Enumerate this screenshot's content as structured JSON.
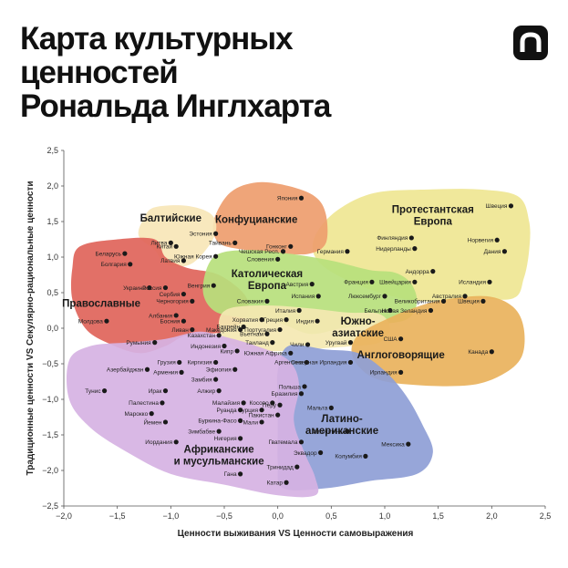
{
  "title_lines": [
    "Карта культурных",
    "ценностей",
    "Рональда Инглхарта"
  ],
  "logo": {
    "icon": "arch-logo-icon",
    "color": "#111111"
  },
  "chart_data": {
    "type": "scatter",
    "xlabel": "Ценности выживания VS Ценности самовыражения",
    "ylabel": "Традиционные ценности VS Секулярно-рациональные ценности",
    "xlim": [
      -2.0,
      2.5
    ],
    "ylim": [
      -2.5,
      2.5
    ],
    "xticks": [
      "−2,0",
      "−1,5",
      "−1,0",
      "−0,5",
      "0,0",
      "0,5",
      "1,0",
      "1,5",
      "2,0",
      "2,5"
    ],
    "yticks": [
      "2,5",
      "2,0",
      "1,5",
      "1,0",
      "0,5",
      "0,0",
      "−0,5",
      "−1,0",
      "−1,5",
      "−2,0",
      "−2,5"
    ],
    "regions": [
      {
        "name": "Протестантская Европа",
        "lines": [
          "Протестантская",
          "Европа"
        ],
        "color": "#efe692",
        "label_at": [
          1.45,
          1.62
        ],
        "outline": [
          [
            0.55,
            1.65
          ],
          [
            0.9,
            1.9
          ],
          [
            1.4,
            1.95
          ],
          [
            1.9,
            1.95
          ],
          [
            2.25,
            1.85
          ],
          [
            2.35,
            1.5
          ],
          [
            2.35,
            1.1
          ],
          [
            2.3,
            0.7
          ],
          [
            2.2,
            0.42
          ],
          [
            1.8,
            0.42
          ],
          [
            1.35,
            0.38
          ],
          [
            0.95,
            0.5
          ],
          [
            0.55,
            0.75
          ],
          [
            0.35,
            1.0
          ],
          [
            0.35,
            1.3
          ]
        ]
      },
      {
        "name": "Конфуцианские",
        "lines": [
          "Конфуцианские"
        ],
        "color": "#ee9d6e",
        "label_at": [
          -0.2,
          1.48
        ],
        "outline": [
          [
            -0.45,
            1.9
          ],
          [
            -0.2,
            2.05
          ],
          [
            0.1,
            2.0
          ],
          [
            0.35,
            1.85
          ],
          [
            0.45,
            1.6
          ],
          [
            0.45,
            1.2
          ],
          [
            0.3,
            1.05
          ],
          [
            0.05,
            1.05
          ],
          [
            -0.3,
            1.1
          ],
          [
            -0.55,
            1.2
          ],
          [
            -0.6,
            1.5
          ]
        ]
      },
      {
        "name": "Балтийские",
        "lines": [
          "Балтийские"
        ],
        "color": "#f7e6b7",
        "label_at": [
          -1.0,
          1.5
        ],
        "outline": [
          [
            -1.25,
            1.55
          ],
          [
            -1.15,
            1.7
          ],
          [
            -0.85,
            1.72
          ],
          [
            -0.62,
            1.6
          ],
          [
            -0.58,
            1.35
          ],
          [
            -0.7,
            1.05
          ],
          [
            -0.85,
            0.88
          ],
          [
            -1.05,
            0.9
          ],
          [
            -1.15,
            1.1
          ],
          [
            -1.3,
            1.3
          ]
        ]
      },
      {
        "name": "Православные",
        "lines": [
          "Православные"
        ],
        "color": "#e0645a",
        "label_at": [
          -1.65,
          0.3
        ],
        "outline": [
          [
            -1.85,
            1.15
          ],
          [
            -1.5,
            1.25
          ],
          [
            -1.15,
            1.25
          ],
          [
            -1.05,
            1.0
          ],
          [
            -0.85,
            0.85
          ],
          [
            -0.55,
            0.75
          ],
          [
            -0.3,
            0.45
          ],
          [
            -0.3,
            0.15
          ],
          [
            -0.5,
            -0.05
          ],
          [
            -0.85,
            -0.1
          ],
          [
            -1.05,
            -0.25
          ],
          [
            -1.3,
            -0.35
          ],
          [
            -1.6,
            -0.2
          ],
          [
            -1.8,
            0.0
          ],
          [
            -1.92,
            0.4
          ],
          [
            -1.92,
            0.85
          ]
        ]
      },
      {
        "name": "Католическая Европа",
        "lines": [
          "Католическая",
          "Европа"
        ],
        "color": "#b7e07c",
        "label_at": [
          -0.1,
          0.72
        ],
        "outline": [
          [
            -0.6,
            1.0
          ],
          [
            -0.3,
            1.1
          ],
          [
            0.1,
            1.05
          ],
          [
            0.5,
            0.95
          ],
          [
            0.85,
            0.82
          ],
          [
            1.1,
            0.78
          ],
          [
            1.25,
            0.62
          ],
          [
            1.3,
            0.35
          ],
          [
            1.2,
            0.12
          ],
          [
            0.9,
            0.05
          ],
          [
            0.6,
            0.0
          ],
          [
            0.3,
            -0.08
          ],
          [
            0.0,
            0.08
          ],
          [
            -0.35,
            0.15
          ],
          [
            -0.6,
            0.25
          ],
          [
            -0.7,
            0.55
          ]
        ]
      },
      {
        "name": "Южно-азиатские",
        "lines": [
          "Южно-",
          "азиатские"
        ],
        "color": "#f4e8b2",
        "label_at": [
          0.75,
          0.05
        ],
        "outline": [
          [
            -0.45,
            0.28
          ],
          [
            -0.1,
            0.32
          ],
          [
            0.3,
            0.28
          ],
          [
            0.65,
            0.22
          ],
          [
            0.95,
            0.2
          ],
          [
            1.05,
            0.0
          ],
          [
            0.95,
            -0.2
          ],
          [
            0.7,
            -0.25
          ],
          [
            0.45,
            -0.28
          ],
          [
            0.05,
            -0.32
          ],
          [
            -0.3,
            -0.3
          ],
          [
            -0.5,
            -0.15
          ],
          [
            -0.55,
            0.1
          ]
        ]
      },
      {
        "name": "Англоговорящие",
        "lines": [
          "Англоговорящие"
        ],
        "color": "#e9b25c",
        "label_at": [
          1.15,
          -0.42
        ],
        "outline": [
          [
            0.75,
            -0.1
          ],
          [
            1.05,
            0.15
          ],
          [
            1.3,
            0.3
          ],
          [
            1.55,
            0.4
          ],
          [
            1.95,
            0.45
          ],
          [
            2.2,
            0.3
          ],
          [
            2.3,
            0.0
          ],
          [
            2.28,
            -0.4
          ],
          [
            2.1,
            -0.65
          ],
          [
            1.8,
            -0.8
          ],
          [
            1.3,
            -0.8
          ],
          [
            0.9,
            -0.7
          ],
          [
            0.7,
            -0.4
          ]
        ]
      },
      {
        "name": "Латиноамериканские",
        "lines": [
          "Латино-",
          "американские"
        ],
        "color": "#8e9ed6",
        "label_at": [
          0.6,
          -1.32
        ],
        "outline": [
          [
            0.1,
            -0.25
          ],
          [
            0.45,
            -0.3
          ],
          [
            0.75,
            -0.35
          ],
          [
            1.0,
            -0.6
          ],
          [
            1.2,
            -0.95
          ],
          [
            1.35,
            -1.35
          ],
          [
            1.45,
            -1.75
          ],
          [
            1.3,
            -2.05
          ],
          [
            0.85,
            -2.15
          ],
          [
            0.45,
            -2.25
          ],
          [
            0.05,
            -2.25
          ],
          [
            0.0,
            -1.9
          ],
          [
            0.0,
            -1.45
          ],
          [
            0.0,
            -1.0
          ],
          [
            0.0,
            -0.6
          ]
        ]
      },
      {
        "name": "Африканские и мусульманские",
        "lines": [
          "Африканские",
          "и мусульманские"
        ],
        "color": "#d6b2e3",
        "label_at": [
          -0.55,
          -1.75
        ],
        "outline": [
          [
            -1.95,
            -0.45
          ],
          [
            -1.75,
            -0.25
          ],
          [
            -1.4,
            -0.2
          ],
          [
            -1.05,
            -0.15
          ],
          [
            -0.75,
            -0.05
          ],
          [
            -0.55,
            -0.1
          ],
          [
            -0.2,
            -0.25
          ],
          [
            0.1,
            -0.45
          ],
          [
            0.2,
            -0.8
          ],
          [
            0.15,
            -1.3
          ],
          [
            0.25,
            -1.75
          ],
          [
            0.35,
            -2.1
          ],
          [
            0.35,
            -2.35
          ],
          [
            0.0,
            -2.35
          ],
          [
            -0.5,
            -2.2
          ],
          [
            -1.0,
            -2.05
          ],
          [
            -1.4,
            -1.75
          ],
          [
            -1.75,
            -1.4
          ],
          [
            -1.95,
            -1.0
          ]
        ]
      }
    ],
    "points": [
      {
        "name": "Япония",
        "x": 0.22,
        "y": 1.83
      },
      {
        "name": "Швеция",
        "x": 2.18,
        "y": 1.72
      },
      {
        "name": "Эстония",
        "x": -0.58,
        "y": 1.33
      },
      {
        "name": "Финляндия",
        "x": 1.25,
        "y": 1.27
      },
      {
        "name": "Норвегия",
        "x": 2.05,
        "y": 1.24
      },
      {
        "name": "Литва",
        "x": -1.0,
        "y": 1.2
      },
      {
        "name": "Китай",
        "x": -0.95,
        "y": 1.15
      },
      {
        "name": "Тайвань",
        "x": -0.4,
        "y": 1.2
      },
      {
        "name": "Гонконг",
        "x": 0.12,
        "y": 1.15
      },
      {
        "name": "Нидерланды",
        "x": 1.28,
        "y": 1.12
      },
      {
        "name": "Дания",
        "x": 2.12,
        "y": 1.08
      },
      {
        "name": "Беларусь",
        "x": -1.43,
        "y": 1.05
      },
      {
        "name": "Чешская Респ.",
        "x": 0.05,
        "y": 1.08
      },
      {
        "name": "Южная Корея",
        "x": -0.58,
        "y": 1.01
      },
      {
        "name": "Германия",
        "x": 0.65,
        "y": 1.08
      },
      {
        "name": "Словения",
        "x": 0.0,
        "y": 0.97
      },
      {
        "name": "Болгария",
        "x": -1.38,
        "y": 0.9
      },
      {
        "name": "Латвия",
        "x": -0.88,
        "y": 0.95
      },
      {
        "name": "Андорра",
        "x": 1.45,
        "y": 0.8
      },
      {
        "name": "Франция",
        "x": 0.88,
        "y": 0.65
      },
      {
        "name": "Швейцария",
        "x": 1.28,
        "y": 0.65
      },
      {
        "name": "Исландия",
        "x": 1.98,
        "y": 0.65
      },
      {
        "name": "Венгрия",
        "x": -0.6,
        "y": 0.6
      },
      {
        "name": "Австрия",
        "x": 0.32,
        "y": 0.62
      },
      {
        "name": "Украина",
        "x": -1.2,
        "y": 0.57
      },
      {
        "name": "Россия",
        "x": -1.05,
        "y": 0.57
      },
      {
        "name": "Сербия",
        "x": -0.88,
        "y": 0.48
      },
      {
        "name": "Испания",
        "x": 0.38,
        "y": 0.45
      },
      {
        "name": "Люксембург",
        "x": 1.0,
        "y": 0.45
      },
      {
        "name": "Австралия",
        "x": 1.75,
        "y": 0.45
      },
      {
        "name": "Словакия",
        "x": -0.1,
        "y": 0.38
      },
      {
        "name": "Черногория",
        "x": -0.8,
        "y": 0.38
      },
      {
        "name": "Великобритания",
        "x": 1.55,
        "y": 0.38
      },
      {
        "name": "Швеция",
        "x": 1.92,
        "y": 0.38
      },
      {
        "name": "Бельгия",
        "x": 1.05,
        "y": 0.25
      },
      {
        "name": "Албания",
        "x": -0.95,
        "y": 0.18
      },
      {
        "name": "Италия",
        "x": 0.2,
        "y": 0.25
      },
      {
        "name": "Новая Зеландия",
        "x": 1.43,
        "y": 0.25
      },
      {
        "name": "Хорватия",
        "x": -0.15,
        "y": 0.12
      },
      {
        "name": "Греция",
        "x": 0.08,
        "y": 0.12
      },
      {
        "name": "Индия",
        "x": 0.37,
        "y": 0.1
      },
      {
        "name": "Босния",
        "x": -0.88,
        "y": 0.1
      },
      {
        "name": "Молдова",
        "x": -1.6,
        "y": 0.1
      },
      {
        "name": "Бахрейн",
        "x": -0.32,
        "y": 0.02
      },
      {
        "name": "Ливан",
        "x": -0.8,
        "y": -0.02
      },
      {
        "name": "Македония",
        "x": -0.35,
        "y": -0.02
      },
      {
        "name": "Португалия",
        "x": 0.02,
        "y": -0.02
      },
      {
        "name": "Вьетнам",
        "x": -0.1,
        "y": -0.08
      },
      {
        "name": "Казахстан",
        "x": -0.55,
        "y": -0.1
      },
      {
        "name": "Таиланд",
        "x": -0.05,
        "y": -0.2
      },
      {
        "name": "Уругвай",
        "x": 0.68,
        "y": -0.2
      },
      {
        "name": "США",
        "x": 1.15,
        "y": -0.15
      },
      {
        "name": "Румыния",
        "x": -1.15,
        "y": -0.2
      },
      {
        "name": "Чили",
        "x": 0.28,
        "y": -0.23
      },
      {
        "name": "Индонезия",
        "x": -0.5,
        "y": -0.25
      },
      {
        "name": "Кипр",
        "x": -0.38,
        "y": -0.32
      },
      {
        "name": "Южная Африка",
        "x": 0.12,
        "y": -0.35
      },
      {
        "name": "Канада",
        "x": 2.0,
        "y": -0.33
      },
      {
        "name": "Грузия",
        "x": -0.92,
        "y": -0.48
      },
      {
        "name": "Киргизия",
        "x": -0.58,
        "y": -0.48
      },
      {
        "name": "Аргентина",
        "x": 0.27,
        "y": -0.48
      },
      {
        "name": "Северная Ирландия",
        "x": 0.68,
        "y": -0.48
      },
      {
        "name": "Азербайджан",
        "x": -1.22,
        "y": -0.58
      },
      {
        "name": "Армения",
        "x": -0.9,
        "y": -0.62
      },
      {
        "name": "Эфиопия",
        "x": -0.4,
        "y": -0.58
      },
      {
        "name": "Ирландия",
        "x": 1.15,
        "y": -0.62
      },
      {
        "name": "Тунис",
        "x": -1.62,
        "y": -0.88
      },
      {
        "name": "Ирак",
        "x": -1.05,
        "y": -0.88
      },
      {
        "name": "Замбия",
        "x": -0.58,
        "y": -0.72
      },
      {
        "name": "Алжир",
        "x": -0.55,
        "y": -0.88
      },
      {
        "name": "Польша",
        "x": 0.25,
        "y": -0.82
      },
      {
        "name": "Бразилия",
        "x": 0.22,
        "y": -0.92
      },
      {
        "name": "Палестина",
        "x": -1.08,
        "y": -1.05
      },
      {
        "name": "Малайзия",
        "x": -0.32,
        "y": -1.05
      },
      {
        "name": "Косово",
        "x": -0.05,
        "y": -1.05
      },
      {
        "name": "Перу",
        "x": 0.02,
        "y": -1.08
      },
      {
        "name": "Руанда",
        "x": -0.35,
        "y": -1.15
      },
      {
        "name": "Турция",
        "x": -0.15,
        "y": -1.15
      },
      {
        "name": "Мальта",
        "x": 0.5,
        "y": -1.12
      },
      {
        "name": "Марокко",
        "x": -1.18,
        "y": -1.2
      },
      {
        "name": "Пакистан",
        "x": 0.0,
        "y": -1.22
      },
      {
        "name": "Буркина-Фасо",
        "x": -0.35,
        "y": -1.3
      },
      {
        "name": "Мали",
        "x": -0.15,
        "y": -1.32
      },
      {
        "name": "Йемен",
        "x": -1.05,
        "y": -1.32
      },
      {
        "name": "Зимбабве",
        "x": -0.55,
        "y": -1.45
      },
      {
        "name": "Филиппины",
        "x": 0.65,
        "y": -1.45
      },
      {
        "name": "Нигерия",
        "x": -0.35,
        "y": -1.55
      },
      {
        "name": "Гватемала",
        "x": 0.22,
        "y": -1.6
      },
      {
        "name": "Иордания",
        "x": -0.95,
        "y": -1.6
      },
      {
        "name": "Мексика",
        "x": 1.22,
        "y": -1.63
      },
      {
        "name": "Эквадор",
        "x": 0.4,
        "y": -1.75
      },
      {
        "name": "Колумбия",
        "x": 0.82,
        "y": -1.8
      },
      {
        "name": "Тринидад",
        "x": 0.18,
        "y": -1.95
      },
      {
        "name": "Гана",
        "x": -0.35,
        "y": -2.05
      },
      {
        "name": "Катар",
        "x": 0.08,
        "y": -2.17
      }
    ]
  }
}
